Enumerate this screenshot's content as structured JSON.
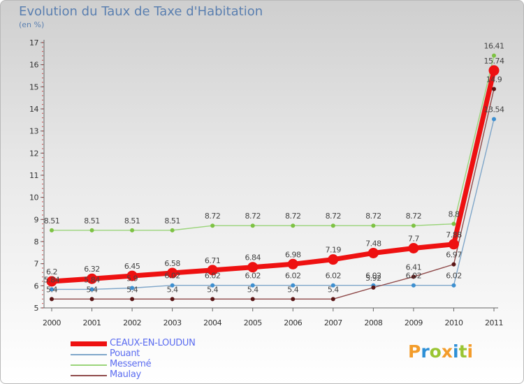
{
  "header": {
    "title": "Evolution du Taux de Taxe d'Habitation",
    "subtitle": "(en %)"
  },
  "brand": {
    "letters": [
      "P",
      "r",
      "o",
      "x",
      "i",
      "t",
      "i"
    ],
    "letter_colors": [
      "#f39c2a",
      "#2d8fd6",
      "#9ac533",
      "#f39c2a",
      "#2d8fd6",
      "#9ac533",
      "#f39c2a"
    ]
  },
  "chart_data": {
    "type": "line",
    "title": "Evolution du Taux de Taxe d'Habitation",
    "ylabel": "(en %)",
    "xlabel": "",
    "ylim": [
      5,
      17
    ],
    "yticks": [
      5,
      6,
      7,
      8,
      9,
      10,
      11,
      12,
      13,
      14,
      15,
      16,
      17
    ],
    "x": [
      "2000",
      "2001",
      "2002",
      "2003",
      "2004",
      "2005",
      "2006",
      "2007",
      "2008",
      "2009",
      "2010",
      "2011"
    ],
    "grid": false,
    "legend_position": "bottom-left",
    "series": [
      {
        "name": "Pouant",
        "color": "#7fa6c9",
        "marker": "#3d8fd0",
        "values": [
          5.84,
          5.84,
          5.9,
          6.02,
          6.02,
          6.02,
          6.02,
          6.02,
          6.02,
          6.02,
          6.02,
          13.54
        ],
        "labels": [
          "5.84",
          "5.84",
          "5.9",
          "6.02",
          "6.02",
          "6.02",
          "6.02",
          "6.02",
          "6.02",
          "6.02",
          "6.02",
          "13.54"
        ]
      },
      {
        "name": "Messemé",
        "color": "#9ad47a",
        "marker": "#7dc243",
        "values": [
          8.51,
          8.51,
          8.51,
          8.51,
          8.72,
          8.72,
          8.72,
          8.72,
          8.72,
          8.72,
          8.8,
          16.41
        ],
        "labels": [
          "8.51",
          "8.51",
          "8.51",
          "8.51",
          "8.72",
          "8.72",
          "8.72",
          "8.72",
          "8.72",
          "8.72",
          "8.8",
          "16.41"
        ]
      },
      {
        "name": "Maulay",
        "color": "#8f4a4a",
        "marker": "#5a1515",
        "values": [
          5.4,
          5.4,
          5.4,
          5.4,
          5.4,
          5.4,
          5.4,
          5.4,
          5.92,
          6.41,
          6.97,
          14.9
        ],
        "labels": [
          "5.4",
          "5.4",
          "5.4",
          "5.4",
          "5.4",
          "5.4",
          "5.4",
          "5.4",
          "5.92",
          "6.41",
          "6.97",
          "14.9"
        ]
      },
      {
        "name": "CEAUX-EN-LOUDUN",
        "color": "#ee1111",
        "marker": "#ee1111",
        "values": [
          6.2,
          6.32,
          6.45,
          6.58,
          6.71,
          6.84,
          6.98,
          7.19,
          7.48,
          7.7,
          7.88,
          15.74
        ],
        "labels": [
          "6.2",
          "6.32",
          "6.45",
          "6.58",
          "6.71",
          "6.84",
          "6.98",
          "7.19",
          "7.48",
          "7.7",
          "7.88",
          "15.74"
        ]
      }
    ],
    "legend_order": [
      "CEAUX-EN-LOUDUN",
      "Pouant",
      "Messemé",
      "Maulay"
    ]
  }
}
